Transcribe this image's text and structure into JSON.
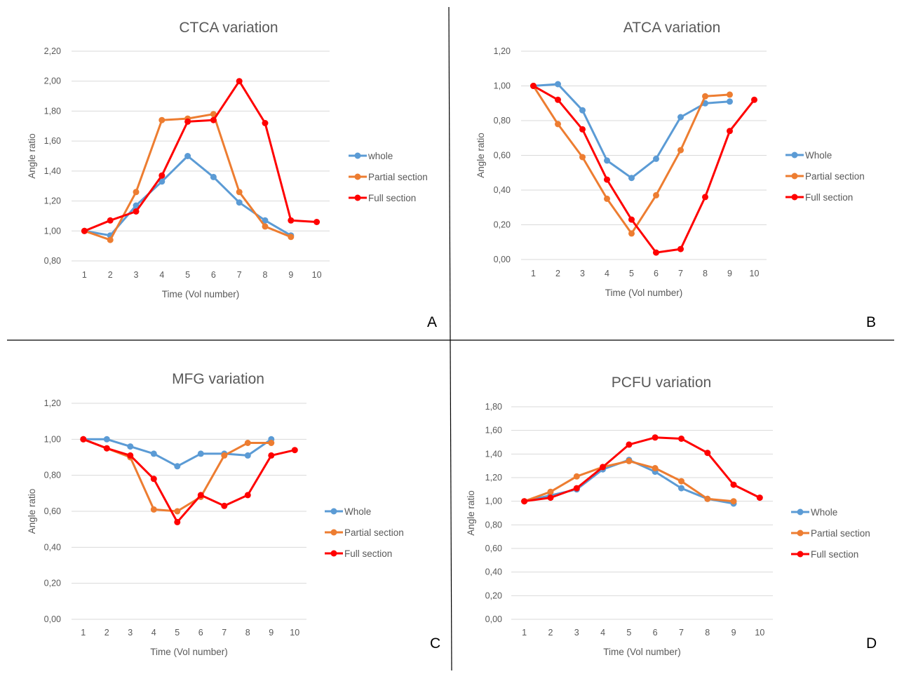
{
  "chart_data": [
    {
      "type": "line",
      "panel_letter": "A",
      "title": "CTCA variation",
      "xlabel": "Time (Vol number)",
      "ylabel": "Angle ratio",
      "x": [
        1,
        2,
        3,
        4,
        5,
        6,
        7,
        8,
        9,
        10
      ],
      "y_ticks": [
        "0,80",
        "1,00",
        "1,20",
        "1,40",
        "1,60",
        "1,80",
        "2,00",
        "2,20"
      ],
      "ylim": [
        0.8,
        2.2
      ],
      "grid": true,
      "legend_position": "right",
      "series": [
        {
          "name": "whole",
          "color": "#5b9bd5",
          "values": [
            1.0,
            0.97,
            1.17,
            1.33,
            1.5,
            1.36,
            1.19,
            1.07,
            0.97,
            null
          ]
        },
        {
          "name": "Partial section",
          "color": "#ed7d31",
          "values": [
            1.0,
            0.94,
            1.26,
            1.74,
            1.75,
            1.78,
            1.26,
            1.03,
            0.96,
            null
          ]
        },
        {
          "name": "Full section",
          "color": "#ff0000",
          "values": [
            1.0,
            1.07,
            1.13,
            1.37,
            1.73,
            1.74,
            2.0,
            1.72,
            1.07,
            1.06
          ]
        }
      ]
    },
    {
      "type": "line",
      "panel_letter": "B",
      "title": "ATCA variation",
      "xlabel": "Time (Vol number)",
      "ylabel": "Angle ratio",
      "x": [
        1,
        2,
        3,
        4,
        5,
        6,
        7,
        8,
        9,
        10
      ],
      "y_ticks": [
        "0,00",
        "0,20",
        "0,40",
        "0,60",
        "0,80",
        "1,00",
        "1,20"
      ],
      "ylim": [
        0,
        1.2
      ],
      "grid": true,
      "legend_position": "right",
      "series": [
        {
          "name": "Whole",
          "color": "#5b9bd5",
          "values": [
            1.0,
            1.01,
            0.86,
            0.57,
            0.47,
            0.58,
            0.82,
            0.9,
            0.91,
            null
          ]
        },
        {
          "name": "Partial section",
          "color": "#ed7d31",
          "values": [
            1.0,
            0.78,
            0.59,
            0.35,
            0.15,
            0.37,
            0.63,
            0.94,
            0.95,
            null
          ]
        },
        {
          "name": "Full section",
          "color": "#ff0000",
          "values": [
            1.0,
            0.92,
            0.75,
            0.46,
            0.23,
            0.04,
            0.06,
            0.36,
            0.74,
            0.92
          ]
        }
      ]
    },
    {
      "type": "line",
      "panel_letter": "C",
      "title": "MFG variation",
      "xlabel": "Time (Vol number)",
      "ylabel": "Angle ratio",
      "x": [
        1,
        2,
        3,
        4,
        5,
        6,
        7,
        8,
        9,
        10
      ],
      "y_ticks": [
        "0,00",
        "0,20",
        "0,40",
        "0,60",
        "0,80",
        "1,00",
        "1,20"
      ],
      "ylim": [
        0,
        1.2
      ],
      "grid": true,
      "legend_position": "right",
      "series": [
        {
          "name": "Whole",
          "color": "#5b9bd5",
          "values": [
            1.0,
            1.0,
            0.96,
            0.92,
            0.85,
            0.92,
            0.92,
            0.91,
            1.0,
            null
          ]
        },
        {
          "name": "Partial section",
          "color": "#ed7d31",
          "values": [
            1.0,
            0.95,
            0.9,
            0.61,
            0.6,
            0.68,
            0.91,
            0.98,
            0.98,
            null
          ]
        },
        {
          "name": "Full section",
          "color": "#ff0000",
          "values": [
            1.0,
            0.95,
            0.91,
            0.78,
            0.54,
            0.69,
            0.63,
            0.69,
            0.91,
            0.94
          ]
        }
      ]
    },
    {
      "type": "line",
      "panel_letter": "D",
      "title": "PCFU variation",
      "xlabel": "Time (Vol number)",
      "ylabel": "Angle ratio",
      "x": [
        1,
        2,
        3,
        4,
        5,
        6,
        7,
        8,
        9,
        10
      ],
      "y_ticks": [
        "0,00",
        "0,20",
        "0,40",
        "0,60",
        "0,80",
        "1,00",
        "1,20",
        "1,40",
        "1,60",
        "1,80"
      ],
      "ylim": [
        0,
        1.8
      ],
      "grid": true,
      "legend_position": "right",
      "series": [
        {
          "name": "Whole",
          "color": "#5b9bd5",
          "values": [
            1.0,
            1.05,
            1.1,
            1.27,
            1.35,
            1.25,
            1.11,
            1.02,
            0.98,
            null
          ]
        },
        {
          "name": "Partial section",
          "color": "#ed7d31",
          "values": [
            1.0,
            1.08,
            1.21,
            1.29,
            1.34,
            1.28,
            1.17,
            1.02,
            1.0,
            null
          ]
        },
        {
          "name": "Full section",
          "color": "#ff0000",
          "values": [
            1.0,
            1.03,
            1.11,
            1.29,
            1.48,
            1.54,
            1.53,
            1.41,
            1.14,
            1.03
          ]
        }
      ]
    }
  ]
}
